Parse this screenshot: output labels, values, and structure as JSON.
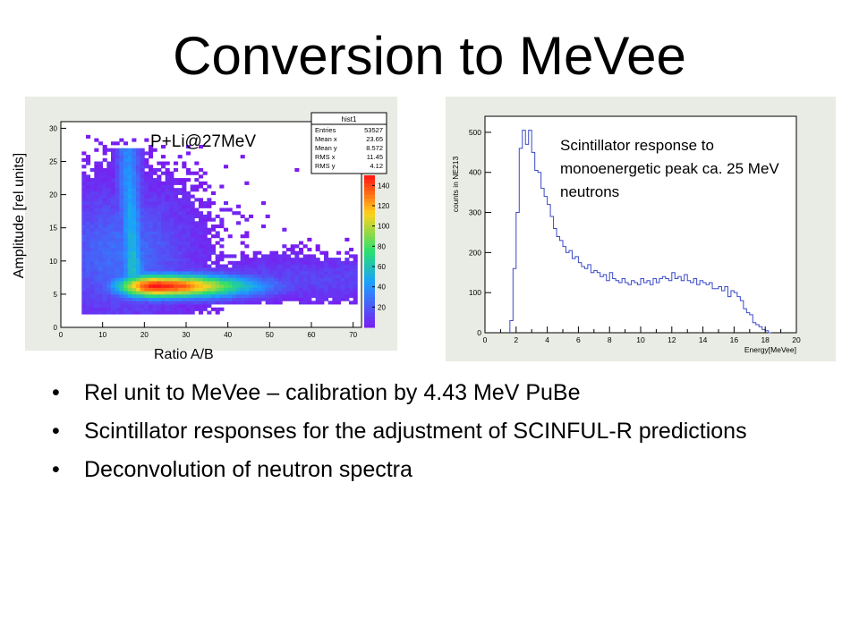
{
  "slide": {
    "title": "Conversion to MeVee",
    "bullets": [
      {
        "marker": "•",
        "text": "Rel unit to MeVee – calibration by 4.43 MeV PuBe"
      },
      {
        "marker": "•",
        "text": "Scintillator responses for the adjustment of SCINFUL-R predictions"
      },
      {
        "marker": "•",
        "text": "Deconvolution of neutron spectra"
      }
    ]
  },
  "chart_data": [
    {
      "type": "heatmap",
      "annotation": "P+Li@27MeV",
      "xlabel": "Ratio A/B",
      "ylabel": "Amplitude [rel units]",
      "xlim": [
        0,
        72
      ],
      "ylim": [
        0,
        31
      ],
      "xticks": [
        0,
        10,
        20,
        30,
        40,
        50,
        60,
        70
      ],
      "yticks": [
        0,
        5,
        10,
        15,
        20,
        25,
        30
      ],
      "colorbar": {
        "ticks": [
          20,
          40,
          60,
          80,
          100,
          120,
          140
        ],
        "range": [
          0,
          150
        ]
      },
      "colors": {
        "low": "#7a1cf0",
        "mid": "#1aa0ff",
        "midhigh": "#28e070",
        "high": "#ffd21a",
        "peak": "#ff1414"
      },
      "stats_box": {
        "name": "hist1",
        "rows": [
          {
            "label": "Entries",
            "value": "53527"
          },
          {
            "label": "Mean x",
            "value": "23.65"
          },
          {
            "label": "Mean y",
            "value": "8.572"
          },
          {
            "label": "RMS x",
            "value": "11.45"
          },
          {
            "label": "RMS y",
            "value": "4.12"
          }
        ]
      },
      "features": [
        {
          "name": "gamma band",
          "x": [
            6,
            70
          ],
          "y": [
            4,
            9
          ],
          "peak_x": 22,
          "peak_y": 6,
          "peak_count": 150
        },
        {
          "name": "neutron ridge",
          "x": [
            14,
            20
          ],
          "y": [
            8,
            27
          ],
          "center_x": 17,
          "count": 55
        }
      ]
    },
    {
      "type": "line",
      "ylabel": "counts in NE213",
      "xlabel": "Energy[MeVee]",
      "xlim": [
        0,
        20
      ],
      "ylim": [
        0,
        540
      ],
      "xticks": [
        0,
        2,
        4,
        6,
        8,
        10,
        12,
        14,
        16,
        18,
        20
      ],
      "yticks": [
        0,
        100,
        200,
        300,
        400,
        500
      ],
      "annotation": "Scintillator response to monoenergetic peak ca. 25 MeV neutrons",
      "line_color": "#3a4ac8",
      "series": [
        {
          "x": [
            1.6,
            1.8,
            2.0,
            2.2,
            2.4,
            2.6,
            2.8,
            3.0,
            3.2,
            3.4,
            3.6,
            3.8,
            4.0,
            4.2,
            4.4,
            4.6,
            4.8,
            5.0,
            5.2,
            5.4,
            5.6,
            5.8,
            6.0,
            6.2,
            6.4,
            6.6,
            6.8,
            7.0,
            7.2,
            7.4,
            7.6,
            7.8,
            8.0,
            8.2,
            8.4,
            8.6,
            8.8,
            9.0,
            9.2,
            9.4,
            9.6,
            9.8,
            10.0,
            10.2,
            10.4,
            10.6,
            10.8,
            11.0,
            11.2,
            11.4,
            11.6,
            11.8,
            12.0,
            12.2,
            12.4,
            12.6,
            12.8,
            13.0,
            13.2,
            13.4,
            13.6,
            13.8,
            14.0,
            14.2,
            14.4,
            14.6,
            14.8,
            15.0,
            15.2,
            15.4,
            15.6,
            15.8,
            16.0,
            16.2,
            16.4,
            16.6,
            16.8,
            17.0,
            17.2,
            17.4,
            17.6,
            17.8,
            18.0,
            18.2
          ],
          "y": [
            30,
            160,
            300,
            460,
            505,
            470,
            505,
            450,
            405,
            400,
            360,
            340,
            320,
            290,
            260,
            240,
            230,
            215,
            200,
            205,
            185,
            190,
            175,
            165,
            160,
            170,
            150,
            155,
            150,
            140,
            145,
            130,
            150,
            135,
            130,
            125,
            135,
            125,
            120,
            130,
            125,
            120,
            135,
            125,
            130,
            120,
            135,
            125,
            135,
            140,
            135,
            130,
            150,
            135,
            140,
            130,
            145,
            130,
            125,
            135,
            120,
            130,
            125,
            120,
            125,
            110,
            110,
            115,
            105,
            115,
            90,
            105,
            100,
            90,
            80,
            60,
            50,
            45,
            25,
            20,
            15,
            8,
            5,
            0
          ]
        }
      ]
    }
  ]
}
